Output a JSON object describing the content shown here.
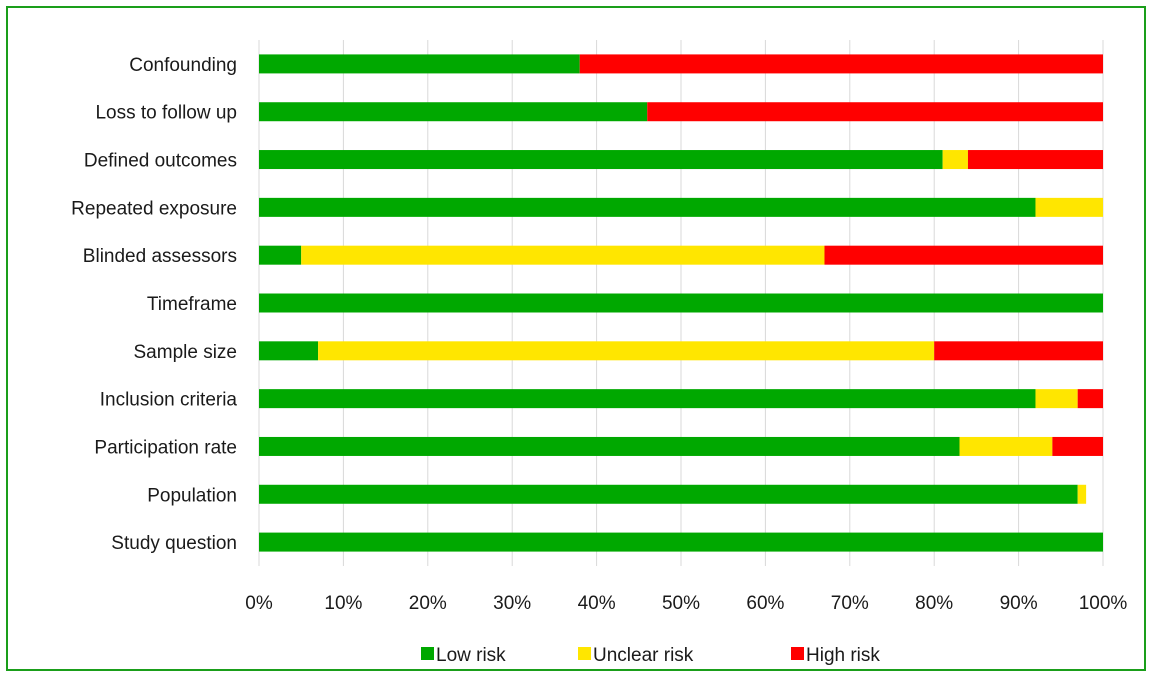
{
  "chart_data": {
    "type": "bar",
    "orientation": "horizontal",
    "stacked": true,
    "categories": [
      "Confounding",
      "Loss to follow up",
      "Defined outcomes",
      "Repeated exposure",
      "Blinded assessors",
      "Timeframe",
      "Sample size",
      "Inclusion criteria",
      "Participation rate",
      "Population",
      "Study question"
    ],
    "series": [
      {
        "name": "Low risk",
        "color": "#00a800",
        "values": [
          38,
          46,
          81,
          92,
          5,
          100,
          7,
          92,
          83,
          97,
          100
        ]
      },
      {
        "name": "Unclear risk",
        "color": "#ffe600",
        "values": [
          0,
          0,
          3,
          8,
          62,
          0,
          73,
          5,
          11,
          1,
          0
        ]
      },
      {
        "name": "High risk",
        "color": "#ff0000",
        "values": [
          62,
          54,
          16,
          0,
          33,
          0,
          20,
          3,
          6,
          0,
          0
        ]
      }
    ],
    "xlim": [
      0,
      100
    ],
    "x_ticks": [
      "0%",
      "10%",
      "20%",
      "30%",
      "40%",
      "50%",
      "60%",
      "70%",
      "80%",
      "90%",
      "100%"
    ],
    "grid": true,
    "legend_position": "bottom"
  }
}
